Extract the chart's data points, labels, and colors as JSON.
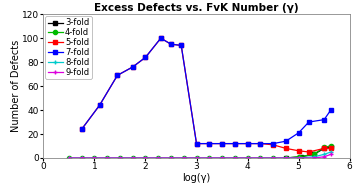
{
  "title": "Excess Defects vs. FvK Number (γ)",
  "xlabel": "log(γ)",
  "ylabel": "Number of Defects",
  "xlim": [
    0,
    6
  ],
  "ylim": [
    0,
    120
  ],
  "yticks": [
    0,
    20,
    40,
    60,
    80,
    100,
    120
  ],
  "xticks": [
    0,
    1,
    2,
    3,
    4,
    5,
    6
  ],
  "series": {
    "3-fold": {
      "color": "#000000",
      "marker": "s",
      "markersize": 3,
      "linewidth": 0.9,
      "x": [
        4.75,
        5.05,
        5.3,
        5.5,
        5.63
      ],
      "y": [
        0,
        1,
        3,
        8,
        9
      ]
    },
    "4-fold": {
      "color": "#00bb00",
      "marker": "o",
      "markersize": 3,
      "linewidth": 0.9,
      "x": [
        0.5,
        0.75,
        1.0,
        1.25,
        1.5,
        1.75,
        2.0,
        2.25,
        2.5,
        2.75,
        3.0,
        3.25,
        3.5,
        3.75,
        4.0,
        4.25,
        4.5,
        4.75,
        5.0,
        5.3,
        5.5,
        5.63
      ],
      "y": [
        0,
        0,
        0,
        0,
        0,
        0,
        0,
        0,
        0,
        0,
        0,
        0,
        0,
        0,
        0,
        0,
        0,
        0,
        1,
        3,
        9,
        10
      ]
    },
    "5-fold": {
      "color": "#ff0000",
      "marker": "s",
      "markersize": 3,
      "linewidth": 0.9,
      "x": [
        0.75,
        1.1,
        1.45,
        1.75,
        2.0,
        2.3,
        2.5,
        2.7,
        3.0,
        3.25,
        3.5,
        3.75,
        4.0,
        4.25,
        4.5,
        4.75,
        5.0,
        5.2,
        5.5,
        5.63
      ],
      "y": [
        24,
        44,
        69,
        76,
        84,
        100,
        95,
        94,
        12,
        12,
        12,
        12,
        12,
        12,
        11,
        8,
        6,
        5,
        8,
        8
      ]
    },
    "7-fold": {
      "color": "#0000ff",
      "marker": "s",
      "markersize": 3,
      "linewidth": 0.9,
      "x": [
        0.75,
        1.1,
        1.45,
        1.75,
        2.0,
        2.3,
        2.5,
        2.7,
        3.0,
        3.25,
        3.5,
        3.75,
        4.0,
        4.25,
        4.5,
        4.75,
        5.0,
        5.2,
        5.5,
        5.63
      ],
      "y": [
        24,
        44,
        69,
        76,
        84,
        100,
        95,
        94,
        12,
        12,
        12,
        12,
        12,
        12,
        12,
        14,
        21,
        30,
        32,
        40
      ]
    },
    "8-fold": {
      "color": "#00cccc",
      "marker": "+",
      "markersize": 3,
      "linewidth": 0.9,
      "x": [
        0.5,
        0.75,
        1.0,
        1.25,
        1.5,
        1.75,
        2.0,
        2.25,
        2.5,
        2.75,
        3.0,
        3.25,
        3.5,
        3.75,
        4.0,
        4.25,
        4.5,
        4.75,
        5.0,
        5.3,
        5.5,
        5.63
      ],
      "y": [
        0,
        0,
        0,
        0,
        0,
        0,
        0,
        0,
        0,
        0,
        0,
        0,
        0,
        0,
        0,
        0,
        0,
        0,
        0,
        1,
        3,
        5
      ]
    },
    "9-fold": {
      "color": "#dd00dd",
      "marker": "+",
      "markersize": 3,
      "linewidth": 0.9,
      "x": [
        0.5,
        0.75,
        1.0,
        1.25,
        1.5,
        1.75,
        2.0,
        2.25,
        2.5,
        2.75,
        3.0,
        3.25,
        3.5,
        3.75,
        4.0,
        4.25,
        4.5,
        4.75,
        5.0,
        5.3,
        5.5,
        5.63
      ],
      "y": [
        0,
        0,
        0,
        0,
        0,
        0,
        0,
        0,
        0,
        0,
        0,
        0,
        0,
        0,
        0,
        0,
        0,
        0,
        0,
        0,
        1,
        3
      ]
    }
  },
  "legend_order": [
    "3-fold",
    "4-fold",
    "5-fold",
    "7-fold",
    "8-fold",
    "9-fold"
  ],
  "background_color": "#ffffff",
  "title_fontsize": 7.5,
  "label_fontsize": 7,
  "tick_fontsize": 6.5,
  "legend_fontsize": 6
}
